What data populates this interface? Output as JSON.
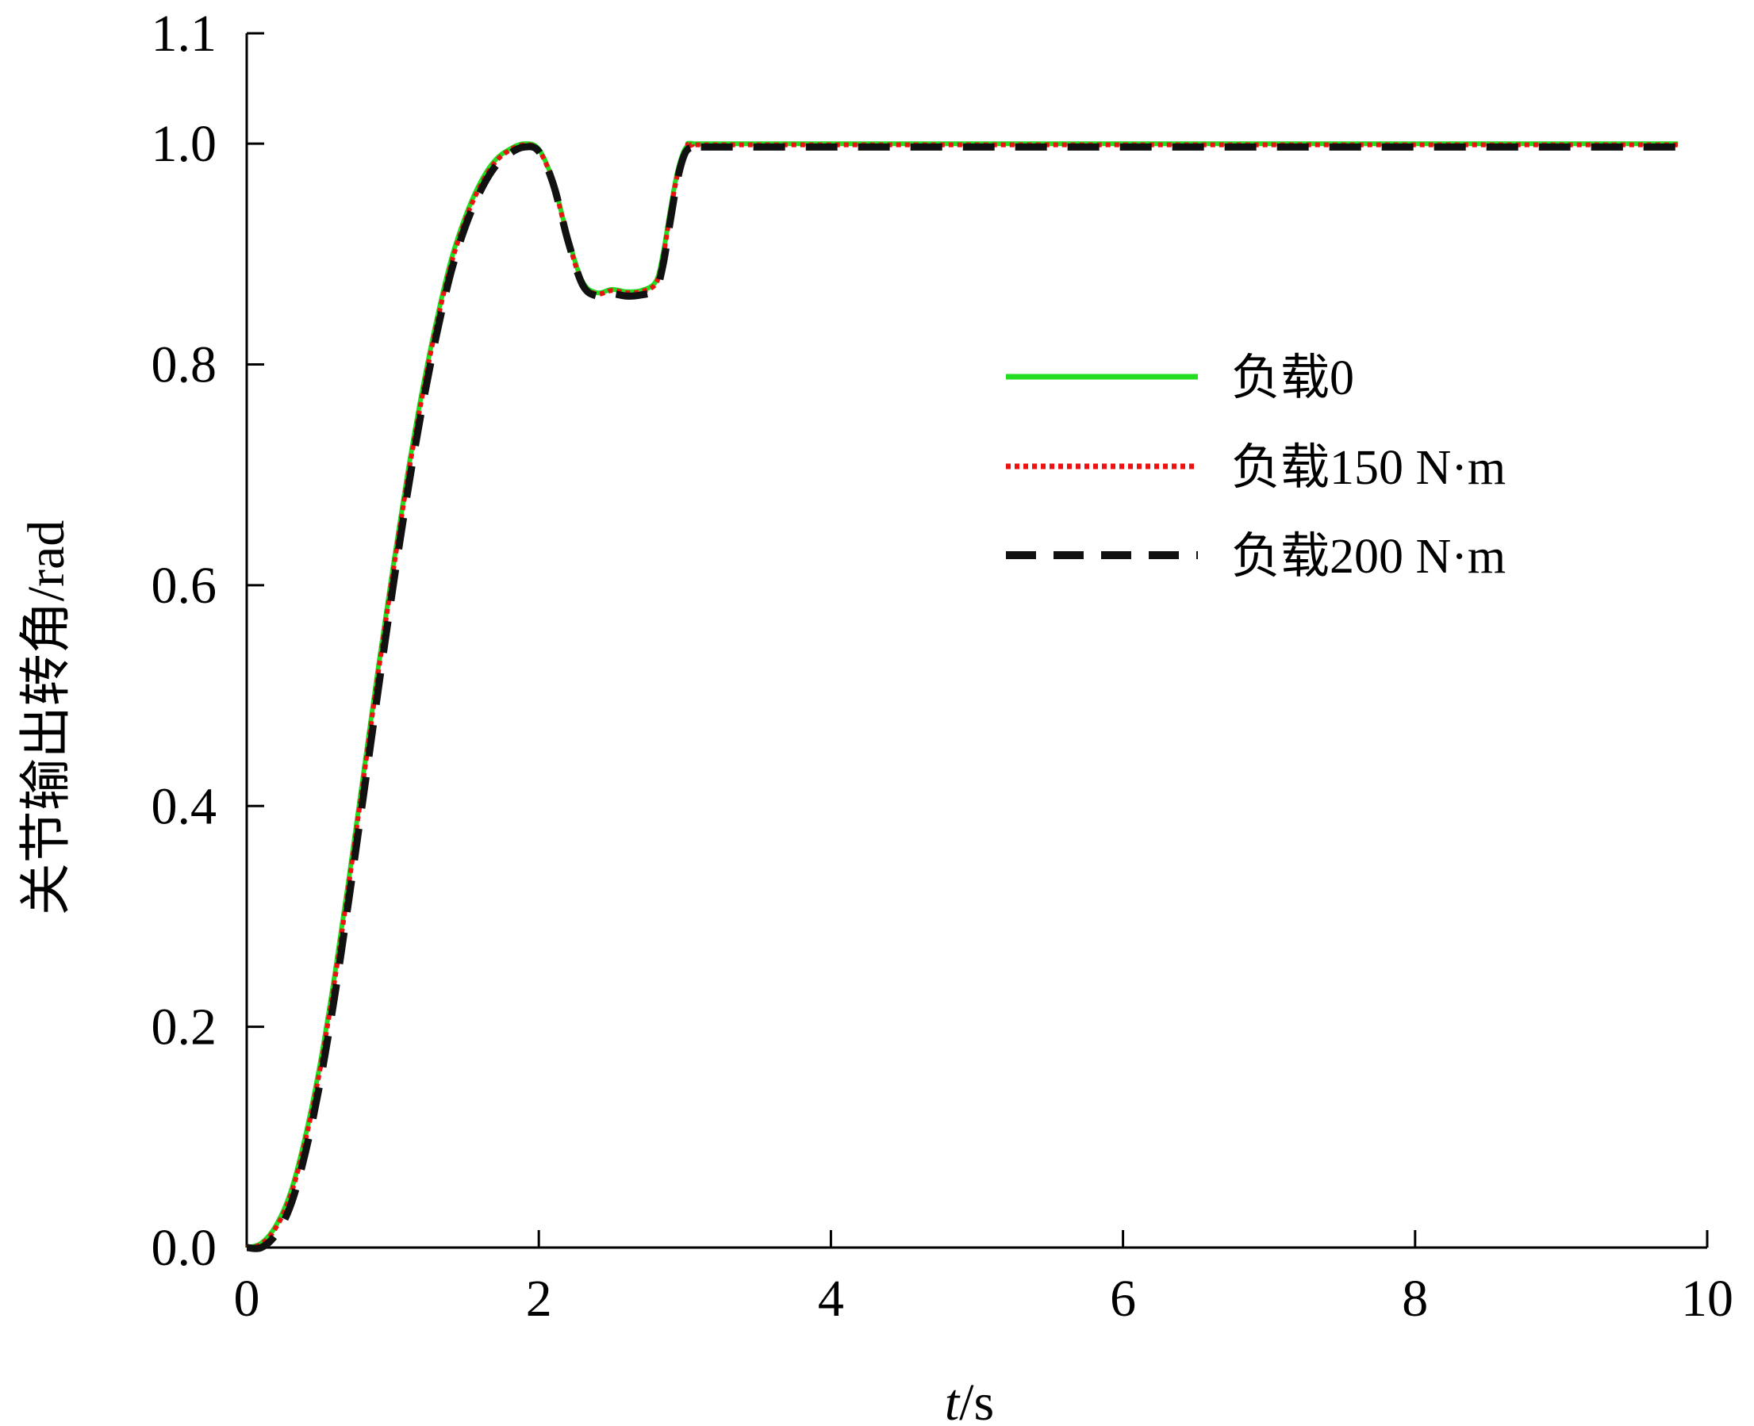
{
  "chart_data": {
    "type": "line",
    "title": "",
    "xlabel_italic": "t",
    "xlabel_unit": "/s",
    "ylabel": "关节输出转角/rad",
    "xlim": [
      0,
      10
    ],
    "ylim": [
      0,
      1.1
    ],
    "xticks": [
      "0",
      "2",
      "4",
      "6",
      "8",
      "10"
    ],
    "yticks": [
      "0.0",
      "0.2",
      "0.4",
      "0.6",
      "0.8",
      "1.0",
      "1.1"
    ],
    "grid": false,
    "legend_position": "right-middle",
    "series": [
      {
        "name": "负载0",
        "color": "#22dd22",
        "style": "solid",
        "x": [
          0,
          0.1,
          0.2,
          0.3,
          0.4,
          0.5,
          0.6,
          0.7,
          0.8,
          0.9,
          1.0,
          1.1,
          1.2,
          1.3,
          1.4,
          1.5,
          1.6,
          1.7,
          1.8,
          1.9,
          2.0,
          2.1,
          2.2,
          2.3,
          2.4,
          2.5,
          2.6,
          2.7,
          2.8,
          2.85,
          2.9,
          2.95,
          3.0,
          3.05,
          3.1,
          4.0,
          5.0,
          6.0,
          7.0,
          8.0,
          9.0,
          9.8
        ],
        "y": [
          0.0,
          0.004,
          0.02,
          0.05,
          0.1,
          0.165,
          0.245,
          0.335,
          0.43,
          0.525,
          0.615,
          0.7,
          0.775,
          0.84,
          0.895,
          0.935,
          0.965,
          0.985,
          0.995,
          1.0,
          0.995,
          0.965,
          0.915,
          0.875,
          0.865,
          0.868,
          0.866,
          0.867,
          0.875,
          0.9,
          0.94,
          0.975,
          0.995,
          1.0,
          1.0,
          1.0,
          1.0,
          1.0,
          1.0,
          1.0,
          1.0,
          1.0
        ]
      },
      {
        "name": "负载150 N·m",
        "color": "#ee1111",
        "style": "dotted",
        "x": [
          0,
          0.1,
          0.2,
          0.3,
          0.4,
          0.5,
          0.6,
          0.7,
          0.8,
          0.9,
          1.0,
          1.1,
          1.2,
          1.3,
          1.4,
          1.5,
          1.6,
          1.7,
          1.8,
          1.9,
          2.0,
          2.1,
          2.2,
          2.3,
          2.4,
          2.5,
          2.6,
          2.7,
          2.8,
          2.85,
          2.9,
          2.95,
          3.0,
          3.05,
          3.1,
          4.0,
          5.0,
          6.0,
          7.0,
          8.0,
          9.0,
          9.8
        ],
        "y": [
          0.0,
          0.003,
          0.018,
          0.047,
          0.096,
          0.16,
          0.24,
          0.33,
          0.425,
          0.52,
          0.61,
          0.695,
          0.77,
          0.836,
          0.891,
          0.932,
          0.962,
          0.983,
          0.994,
          0.999,
          0.994,
          0.964,
          0.913,
          0.873,
          0.864,
          0.867,
          0.865,
          0.866,
          0.873,
          0.897,
          0.937,
          0.972,
          0.993,
          0.999,
          0.999,
          0.999,
          0.999,
          0.999,
          0.999,
          0.999,
          0.999,
          0.999
        ]
      },
      {
        "name": "负载200 N·m",
        "color": "#111111",
        "style": "dashed",
        "x": [
          0,
          0.1,
          0.2,
          0.3,
          0.4,
          0.5,
          0.6,
          0.7,
          0.8,
          0.9,
          1.0,
          1.1,
          1.2,
          1.3,
          1.4,
          1.5,
          1.6,
          1.7,
          1.8,
          1.9,
          2.0,
          2.1,
          2.2,
          2.3,
          2.4,
          2.5,
          2.6,
          2.7,
          2.8,
          2.85,
          2.9,
          2.95,
          3.0,
          3.05,
          3.1,
          4.0,
          5.0,
          6.0,
          7.0,
          8.0,
          9.0,
          9.8
        ],
        "y": [
          0.0,
          0.0,
          0.012,
          0.038,
          0.085,
          0.148,
          0.226,
          0.316,
          0.41,
          0.505,
          0.597,
          0.683,
          0.76,
          0.827,
          0.884,
          0.926,
          0.957,
          0.979,
          0.991,
          0.997,
          0.993,
          0.963,
          0.912,
          0.872,
          0.862,
          0.864,
          0.862,
          0.863,
          0.868,
          0.89,
          0.93,
          0.968,
          0.991,
          0.997,
          0.997,
          0.997,
          0.997,
          0.997,
          0.997,
          0.997,
          0.997,
          0.997
        ]
      }
    ]
  }
}
